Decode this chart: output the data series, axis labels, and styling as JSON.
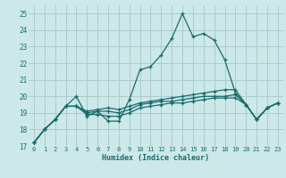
{
  "xlabel": "Humidex (Indice chaleur)",
  "bg_color": "#cce8e8",
  "grid_color": "#aacccc",
  "line_color": "#1a6b6b",
  "xlim": [
    -0.5,
    23.5
  ],
  "ylim": [
    17,
    25.5
  ],
  "xticks": [
    0,
    1,
    2,
    3,
    4,
    5,
    6,
    7,
    8,
    9,
    10,
    11,
    12,
    13,
    14,
    15,
    16,
    17,
    18,
    19,
    20,
    21,
    22,
    23
  ],
  "yticks": [
    17,
    18,
    19,
    20,
    21,
    22,
    23,
    24,
    25
  ],
  "series": [
    [
      17.2,
      18.0,
      18.6,
      19.4,
      20.0,
      18.8,
      19.1,
      18.5,
      18.5,
      19.8,
      21.6,
      21.8,
      22.5,
      23.5,
      25.0,
      23.6,
      23.8,
      23.4,
      22.2,
      20.2,
      19.5,
      18.6,
      19.3,
      19.6
    ],
    [
      17.2,
      18.0,
      18.6,
      19.4,
      19.4,
      18.9,
      18.9,
      18.8,
      18.8,
      19.0,
      19.3,
      19.4,
      19.5,
      19.6,
      19.6,
      19.7,
      19.8,
      19.9,
      19.9,
      19.9,
      19.5,
      18.6,
      19.3,
      19.6
    ],
    [
      17.2,
      18.0,
      18.6,
      19.4,
      19.4,
      19.0,
      19.1,
      19.1,
      19.0,
      19.2,
      19.5,
      19.6,
      19.7,
      19.7,
      19.8,
      19.9,
      20.0,
      20.0,
      20.0,
      20.1,
      19.5,
      18.6,
      19.3,
      19.6
    ],
    [
      17.2,
      18.0,
      18.6,
      19.4,
      19.4,
      19.1,
      19.2,
      19.3,
      19.2,
      19.4,
      19.6,
      19.7,
      19.8,
      19.9,
      20.0,
      20.1,
      20.2,
      20.3,
      20.4,
      20.4,
      19.5,
      18.6,
      19.3,
      19.6
    ]
  ]
}
